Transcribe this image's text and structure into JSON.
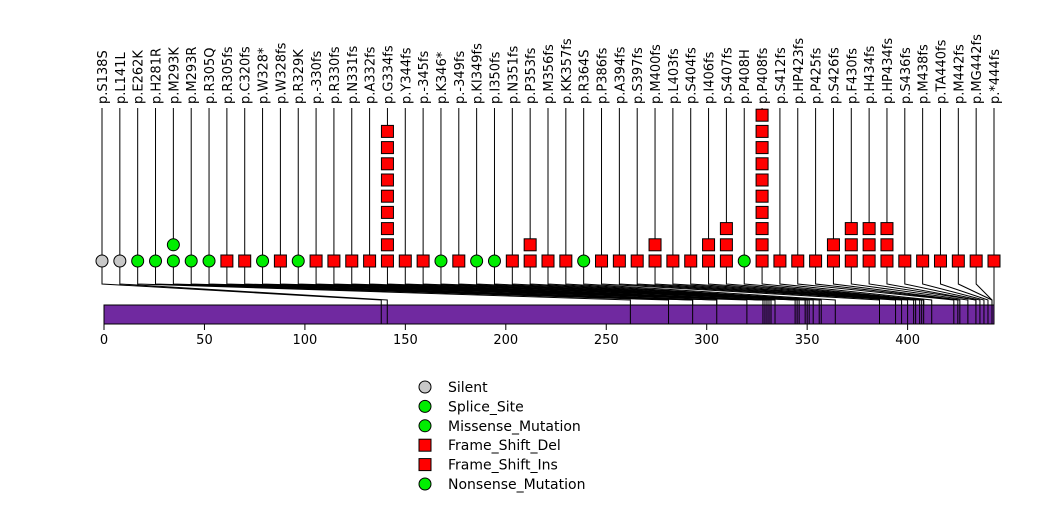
{
  "chart_data": {
    "type": "lollipop",
    "title": "",
    "xlabel": "",
    "ylabel": "",
    "protein_length": 443,
    "xlim": [
      0,
      443
    ],
    "x_ticks": [
      0,
      50,
      100,
      150,
      200,
      250,
      300,
      350,
      400
    ],
    "colors": {
      "Silent": "#c8c8c8",
      "Splice_Site": "#00ee00",
      "Missense_Mutation": "#00ee00",
      "Frame_Shift_Del": "#ff0000",
      "Frame_Shift_Ins": "#ff0000",
      "Nonsense_Mutation": "#00ee00",
      "protein_bar": "#7029a0"
    },
    "mutations": [
      {
        "label": "p.S138S",
        "pos": 138,
        "count": 1,
        "shape": "circle",
        "type": "Silent"
      },
      {
        "label": "p.L141L",
        "pos": 141,
        "count": 1,
        "shape": "circle",
        "type": "Silent"
      },
      {
        "label": "p.E262K",
        "pos": 262,
        "count": 1,
        "shape": "circle",
        "type": "Missense_Mutation"
      },
      {
        "label": "p.H281R",
        "pos": 281,
        "count": 1,
        "shape": "circle",
        "type": "Missense_Mutation"
      },
      {
        "label": "p.M293K",
        "pos": 293,
        "count": 2,
        "shape": "circle",
        "type": "Missense_Mutation"
      },
      {
        "label": "p.M293R",
        "pos": 293,
        "count": 1,
        "shape": "circle",
        "type": "Missense_Mutation"
      },
      {
        "label": "p.R305Q",
        "pos": 305,
        "count": 1,
        "shape": "circle",
        "type": "Missense_Mutation"
      },
      {
        "label": "p.R305fs",
        "pos": 305,
        "count": 1,
        "shape": "square",
        "type": "Frame_Shift_Del"
      },
      {
        "label": "p.C320fs",
        "pos": 320,
        "count": 1,
        "shape": "square",
        "type": "Frame_Shift_Del"
      },
      {
        "label": "p.W328*",
        "pos": 328,
        "count": 1,
        "shape": "circle",
        "type": "Nonsense_Mutation"
      },
      {
        "label": "p.W328fs",
        "pos": 328,
        "count": 1,
        "shape": "square",
        "type": "Frame_Shift_Del"
      },
      {
        "label": "p.R329K",
        "pos": 329,
        "count": 1,
        "shape": "circle",
        "type": "Missense_Mutation"
      },
      {
        "label": "p.-330fs",
        "pos": 330,
        "count": 1,
        "shape": "square",
        "type": "Frame_Shift_Ins"
      },
      {
        "label": "p.R330fs",
        "pos": 330,
        "count": 1,
        "shape": "square",
        "type": "Frame_Shift_Del"
      },
      {
        "label": "p.N331fs",
        "pos": 331,
        "count": 1,
        "shape": "square",
        "type": "Frame_Shift_Del"
      },
      {
        "label": "p.A332fs",
        "pos": 332,
        "count": 1,
        "shape": "square",
        "type": "Frame_Shift_Del"
      },
      {
        "label": "p.G334fs",
        "pos": 334,
        "count": 9,
        "shape": "square",
        "type": "Frame_Shift_Del"
      },
      {
        "label": "p.Y344fs",
        "pos": 344,
        "count": 1,
        "shape": "square",
        "type": "Frame_Shift_Del"
      },
      {
        "label": "p.-345fs",
        "pos": 345,
        "count": 1,
        "shape": "square",
        "type": "Frame_Shift_Ins"
      },
      {
        "label": "p.K346*",
        "pos": 346,
        "count": 1,
        "shape": "circle",
        "type": "Nonsense_Mutation"
      },
      {
        "label": "p.-349fs",
        "pos": 349,
        "count": 1,
        "shape": "square",
        "type": "Frame_Shift_Ins"
      },
      {
        "label": "p.KI349fs",
        "pos": 349,
        "count": 1,
        "shape": "circle",
        "type": "Splice_Site"
      },
      {
        "label": "p.I350fs",
        "pos": 350,
        "count": 1,
        "shape": "circle",
        "type": "Splice_Site"
      },
      {
        "label": "p.N351fs",
        "pos": 351,
        "count": 1,
        "shape": "square",
        "type": "Frame_Shift_Del"
      },
      {
        "label": "p.P353fs",
        "pos": 353,
        "count": 2,
        "shape": "square",
        "type": "Frame_Shift_Del"
      },
      {
        "label": "p.M356fs",
        "pos": 356,
        "count": 1,
        "shape": "square",
        "type": "Frame_Shift_Del"
      },
      {
        "label": "p.KK357fs",
        "pos": 357,
        "count": 1,
        "shape": "square",
        "type": "Frame_Shift_Del"
      },
      {
        "label": "p.R364S",
        "pos": 364,
        "count": 1,
        "shape": "circle",
        "type": "Missense_Mutation"
      },
      {
        "label": "p.P386fs",
        "pos": 386,
        "count": 1,
        "shape": "square",
        "type": "Frame_Shift_Del"
      },
      {
        "label": "p.A394fs",
        "pos": 394,
        "count": 1,
        "shape": "square",
        "type": "Frame_Shift_Del"
      },
      {
        "label": "p.S397fs",
        "pos": 397,
        "count": 1,
        "shape": "square",
        "type": "Frame_Shift_Del"
      },
      {
        "label": "p.M400fs",
        "pos": 400,
        "count": 2,
        "shape": "square",
        "type": "Frame_Shift_Del"
      },
      {
        "label": "p.L403fs",
        "pos": 403,
        "count": 1,
        "shape": "square",
        "type": "Frame_Shift_Del"
      },
      {
        "label": "p.S404fs",
        "pos": 404,
        "count": 1,
        "shape": "square",
        "type": "Frame_Shift_Del"
      },
      {
        "label": "p.I406fs",
        "pos": 406,
        "count": 2,
        "shape": "square",
        "type": "Frame_Shift_Del"
      },
      {
        "label": "p.S407fs",
        "pos": 407,
        "count": 3,
        "shape": "square",
        "type": "Frame_Shift_Del"
      },
      {
        "label": "p.P408H",
        "pos": 408,
        "count": 1,
        "shape": "circle",
        "type": "Missense_Mutation"
      },
      {
        "label": "p.P408fs",
        "pos": 408,
        "count": 10,
        "shape": "square",
        "type": "Frame_Shift_Del"
      },
      {
        "label": "p.S412fs",
        "pos": 412,
        "count": 1,
        "shape": "square",
        "type": "Frame_Shift_Del"
      },
      {
        "label": "p.HP423fs",
        "pos": 423,
        "count": 1,
        "shape": "square",
        "type": "Frame_Shift_Del"
      },
      {
        "label": "p.P425fs",
        "pos": 425,
        "count": 1,
        "shape": "square",
        "type": "Frame_Shift_Del"
      },
      {
        "label": "p.S426fs",
        "pos": 426,
        "count": 2,
        "shape": "square",
        "type": "Frame_Shift_Del"
      },
      {
        "label": "p.F430fs",
        "pos": 430,
        "count": 3,
        "shape": "square",
        "type": "Frame_Shift_Del"
      },
      {
        "label": "p.H434fs",
        "pos": 434,
        "count": 3,
        "shape": "square",
        "type": "Frame_Shift_Del"
      },
      {
        "label": "p.HP434fs",
        "pos": 434,
        "count": 3,
        "shape": "square",
        "type": "Frame_Shift_Del"
      },
      {
        "label": "p.S436fs",
        "pos": 436,
        "count": 1,
        "shape": "square",
        "type": "Frame_Shift_Del"
      },
      {
        "label": "p.M438fs",
        "pos": 438,
        "count": 1,
        "shape": "square",
        "type": "Frame_Shift_Del"
      },
      {
        "label": "p.TA440fs",
        "pos": 440,
        "count": 1,
        "shape": "square",
        "type": "Frame_Shift_Del"
      },
      {
        "label": "p.M442fs",
        "pos": 442,
        "count": 1,
        "shape": "square",
        "type": "Frame_Shift_Del"
      },
      {
        "label": "p.MG442fs",
        "pos": 442,
        "count": 1,
        "shape": "square",
        "type": "Frame_Shift_Del"
      },
      {
        "label": "p.*444fs",
        "pos": 443,
        "count": 1,
        "shape": "square",
        "type": "Frame_Shift_Del"
      }
    ],
    "legend": {
      "placement": "bottom-center",
      "entries": [
        {
          "label": "Silent",
          "shape": "circle",
          "color": "#c8c8c8"
        },
        {
          "label": "Splice_Site",
          "shape": "circle",
          "color": "#00ee00"
        },
        {
          "label": "Missense_Mutation",
          "shape": "circle",
          "color": "#00ee00"
        },
        {
          "label": "Frame_Shift_Del",
          "shape": "square",
          "color": "#ff0000"
        },
        {
          "label": "Frame_Shift_Ins",
          "shape": "square",
          "color": "#ff0000"
        },
        {
          "label": "Nonsense_Mutation",
          "shape": "circle",
          "color": "#00ee00"
        }
      ]
    }
  }
}
